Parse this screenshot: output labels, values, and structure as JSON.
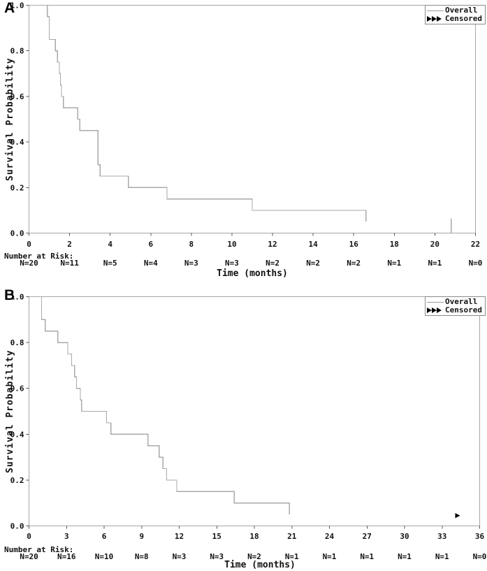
{
  "figure": {
    "description": "Two-panel Kaplan-Meier overall survival figure"
  },
  "chart_data": [
    {
      "type": "line",
      "subtype": "kaplan-meier-step",
      "panel_label": "A",
      "ylabel": "Survival Probability",
      "xlabel": "Time (months)",
      "at_risk_label": "Number at Risk:",
      "legend": {
        "overall": "Overall",
        "censored": "Censored"
      },
      "legend_position": "top-right",
      "grid": false,
      "xlim": [
        0,
        22
      ],
      "ylim": [
        0,
        1
      ],
      "x_ticks": [
        0,
        2,
        4,
        6,
        8,
        10,
        12,
        14,
        16,
        18,
        20,
        22
      ],
      "y_ticks": [
        {
          "v": 1.0,
          "label": "1.0"
        },
        {
          "v": 0.8,
          "label": "0.8"
        },
        {
          "v": 0.6,
          "label": "0.6"
        },
        {
          "v": 0.4,
          "label": "0.4"
        },
        {
          "v": 0.2,
          "label": "0.2"
        },
        {
          "v": 0.0,
          "label": "0.0"
        }
      ],
      "series": [
        {
          "name": "Overall",
          "points": [
            [
              0,
              1.0
            ],
            [
              0.9,
              0.95
            ],
            [
              1.0,
              0.85
            ],
            [
              1.3,
              0.8
            ],
            [
              1.4,
              0.75
            ],
            [
              1.5,
              0.7
            ],
            [
              1.55,
              0.65
            ],
            [
              1.6,
              0.6
            ],
            [
              1.7,
              0.55
            ],
            [
              2.4,
              0.5
            ],
            [
              2.5,
              0.45
            ],
            [
              3.4,
              0.3
            ],
            [
              3.5,
              0.25
            ],
            [
              4.9,
              0.2
            ],
            [
              6.8,
              0.15
            ],
            [
              11.0,
              0.1
            ],
            [
              16.6,
              0.05
            ]
          ]
        }
      ],
      "terminal_segment": {
        "x": 20.8,
        "from": 0.065,
        "to": 0.0
      },
      "censored_marks": [],
      "at_risk": [
        {
          "time": 0,
          "label": "N=20"
        },
        {
          "time": 2,
          "label": "N=11"
        },
        {
          "time": 4,
          "label": "N=5"
        },
        {
          "time": 6,
          "label": "N=4"
        },
        {
          "time": 8,
          "label": "N=3"
        },
        {
          "time": 10,
          "label": "N=3"
        },
        {
          "time": 12,
          "label": "N=2"
        },
        {
          "time": 14,
          "label": "N=2"
        },
        {
          "time": 16,
          "label": "N=2"
        },
        {
          "time": 18,
          "label": "N=1"
        },
        {
          "time": 20,
          "label": "N=1"
        },
        {
          "time": 22,
          "label": "N=0"
        }
      ]
    },
    {
      "type": "line",
      "subtype": "kaplan-meier-step",
      "panel_label": "B",
      "ylabel": "Survival Probability",
      "xlabel": "Time (months)",
      "at_risk_label": "Number at Risk:",
      "legend": {
        "overall": "Overall",
        "censored": "Censored"
      },
      "legend_position": "top-right",
      "grid": false,
      "xlim": [
        0,
        36
      ],
      "ylim": [
        0,
        1
      ],
      "x_ticks": [
        0,
        3,
        6,
        9,
        12,
        15,
        18,
        21,
        24,
        27,
        30,
        33,
        36
      ],
      "y_ticks": [
        {
          "v": 1.0,
          "label": "1.0"
        },
        {
          "v": 0.8,
          "label": "0.8"
        },
        {
          "v": 0.6,
          "label": "0.6"
        },
        {
          "v": 0.4,
          "label": "0.4"
        },
        {
          "v": 0.2,
          "label": "0.2"
        },
        {
          "v": 0.0,
          "label": "0.0"
        }
      ],
      "series": [
        {
          "name": "Overall",
          "points": [
            [
              0,
              1.0
            ],
            [
              1.0,
              0.9
            ],
            [
              1.3,
              0.85
            ],
            [
              2.3,
              0.8
            ],
            [
              3.1,
              0.75
            ],
            [
              3.4,
              0.7
            ],
            [
              3.65,
              0.65
            ],
            [
              3.8,
              0.6
            ],
            [
              4.1,
              0.55
            ],
            [
              4.2,
              0.5
            ],
            [
              6.2,
              0.45
            ],
            [
              6.55,
              0.4
            ],
            [
              9.5,
              0.35
            ],
            [
              10.4,
              0.3
            ],
            [
              10.7,
              0.25
            ],
            [
              11.0,
              0.2
            ],
            [
              11.8,
              0.15
            ],
            [
              16.4,
              0.1
            ],
            [
              20.8,
              0.05
            ]
          ]
        }
      ],
      "terminal_segment": null,
      "censored_marks": [
        {
          "x": 34.1,
          "y": 0.045
        }
      ],
      "at_risk": [
        {
          "time": 0,
          "label": "N=20"
        },
        {
          "time": 3,
          "label": "N=16"
        },
        {
          "time": 6,
          "label": "N=10"
        },
        {
          "time": 9,
          "label": "N=8"
        },
        {
          "time": 12,
          "label": "N=3"
        },
        {
          "time": 15,
          "label": "N=3"
        },
        {
          "time": 18,
          "label": "N=2"
        },
        {
          "time": 21,
          "label": "N=1"
        },
        {
          "time": 24,
          "label": "N=1"
        },
        {
          "time": 27,
          "label": "N=1"
        },
        {
          "time": 30,
          "label": "N=1"
        },
        {
          "time": 33,
          "label": "N=1"
        },
        {
          "time": 36,
          "label": "N=0"
        }
      ]
    }
  ],
  "colors": {
    "curve": "#a9a9a9",
    "frame": "#a6a6a6",
    "tick": "#555555",
    "text": "#111111",
    "censored_marker": "#000000",
    "background": "#ffffff"
  }
}
